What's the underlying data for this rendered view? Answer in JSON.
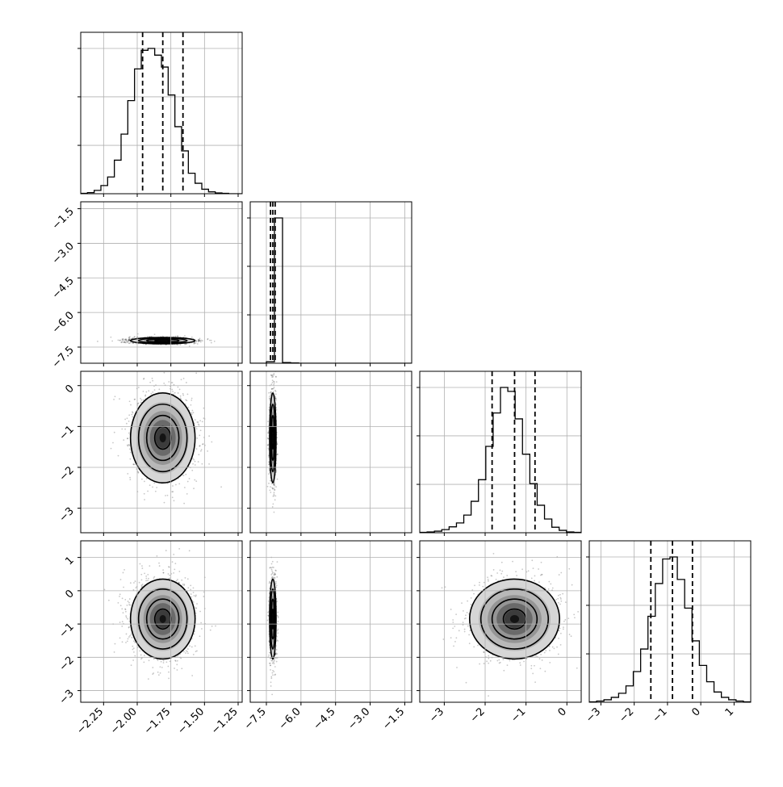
{
  "chart_data": {
    "type": "corner",
    "grid": true,
    "params": [
      {
        "range": [
          -2.42,
          -1.22
        ],
        "ticks": [
          "−2.25",
          "−2.00",
          "−1.75",
          "−1.50",
          "−1.25"
        ],
        "tick_values": [
          -2.25,
          -2.0,
          -1.75,
          -1.5,
          -1.25
        ]
      },
      {
        "range": [
          -8.2,
          -1.2
        ],
        "ticks": [
          "−7.5",
          "−6.0",
          "−4.5",
          "−3.0",
          "−1.5"
        ],
        "tick_values": [
          -7.5,
          -6.0,
          -4.5,
          -3.0,
          -1.5
        ]
      },
      {
        "range": [
          -3.6,
          0.35
        ],
        "ticks": [
          "−3",
          "−2",
          "−1",
          "0"
        ],
        "tick_values": [
          -3,
          -2,
          -1,
          0
        ]
      },
      {
        "range": [
          -3.35,
          1.5
        ],
        "ticks": [
          "−3",
          "−2",
          "−1",
          "0",
          "1"
        ],
        "tick_values": [
          -3,
          -2,
          -1,
          0,
          1
        ]
      }
    ],
    "histograms": [
      {
        "param": 0,
        "bins": 24,
        "counts": [
          1,
          3,
          9,
          22,
          45,
          90,
          160,
          250,
          335,
          385,
          390,
          372,
          340,
          265,
          180,
          115,
          55,
          28,
          12,
          5,
          2,
          1,
          0,
          0
        ],
        "quantiles": [
          -1.96,
          -1.81,
          -1.66
        ]
      },
      {
        "param": 1,
        "bins": 20,
        "counts": [
          0,
          0,
          1,
          100,
          0.5,
          0.2,
          0,
          0,
          0,
          0,
          0,
          0,
          0,
          0,
          0,
          0,
          0,
          0,
          0,
          0
        ],
        "quantiles": [
          -7.32,
          -7.22,
          -7.12
        ]
      },
      {
        "param": 2,
        "bins": 22,
        "counts": [
          1,
          2,
          4,
          8,
          15,
          25,
          45,
          80,
          135,
          220,
          305,
          370,
          360,
          290,
          200,
          125,
          70,
          35,
          14,
          6,
          2,
          1
        ],
        "quantiles": [
          -1.83,
          -1.28,
          -0.78
        ]
      },
      {
        "param": 3,
        "bins": 22,
        "counts": [
          1,
          3,
          6,
          12,
          22,
          40,
          75,
          130,
          210,
          290,
          350,
          355,
          300,
          230,
          150,
          90,
          50,
          25,
          12,
          6,
          3,
          1
        ],
        "quantiles": [
          -1.5,
          -0.85,
          -0.25
        ]
      }
    ],
    "pairs": [
      {
        "x": 0,
        "y": 1,
        "center": [
          -1.81,
          -7.22
        ],
        "sigma": [
          0.12,
          0.07
        ]
      },
      {
        "x": 0,
        "y": 2,
        "center": [
          -1.81,
          -1.28
        ],
        "sigma": [
          0.12,
          0.55
        ]
      },
      {
        "x": 0,
        "y": 3,
        "center": [
          -1.81,
          -0.85
        ],
        "sigma": [
          0.12,
          0.6
        ]
      },
      {
        "x": 1,
        "y": 2,
        "center": [
          -7.22,
          -1.28
        ],
        "sigma": [
          0.07,
          0.55
        ]
      },
      {
        "x": 1,
        "y": 3,
        "center": [
          -7.22,
          -0.85
        ],
        "sigma": [
          0.07,
          0.6
        ]
      },
      {
        "x": 2,
        "y": 3,
        "center": [
          -1.28,
          -0.85
        ],
        "sigma": [
          0.55,
          0.6
        ]
      }
    ]
  }
}
